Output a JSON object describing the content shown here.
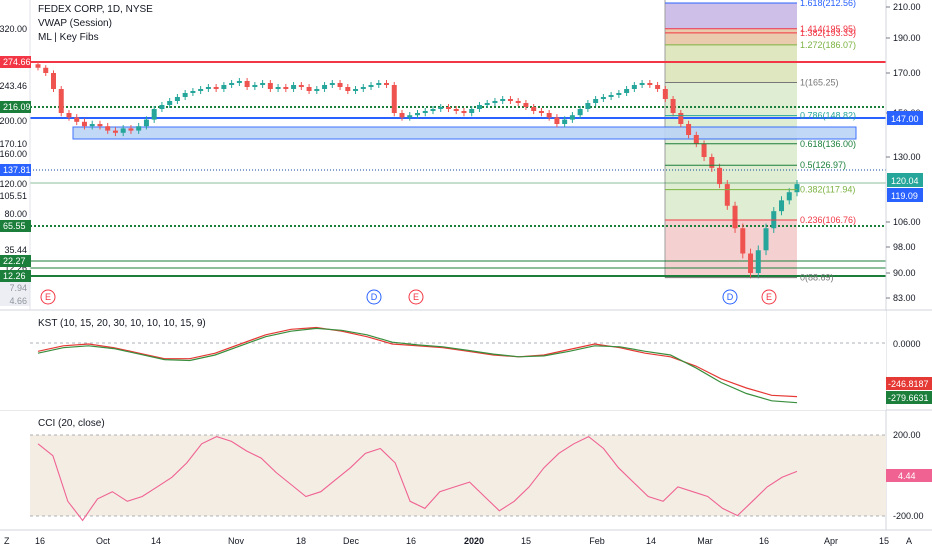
{
  "legend": {
    "symbol_title": "FEDEX CORP, 1D, NYSE",
    "vwap": "VWAP (Session)",
    "ml_fibs": "ML | Key Fibs"
  },
  "colors": {
    "up": "#26a69a",
    "down": "#ef5350",
    "dark_green": "#1b7f3b",
    "blue": "#2962ff",
    "red_line": "#f23645",
    "kst": "#e53935",
    "kst_signal": "#388e3c",
    "cci": "#f06292",
    "fib_box_green": "#d1e6bf",
    "fib_box_red": "#f2c4c4",
    "purple": "#9b7fc9"
  },
  "time_axis": {
    "labels": [
      "16",
      "Oct",
      "14",
      "Nov",
      "18",
      "Dec",
      "16",
      "2020",
      "15",
      "Feb",
      "14",
      "Mar",
      "16",
      "Apr",
      "15"
    ],
    "left_letter": "Z",
    "right_letter": "A"
  },
  "price_axis_right": {
    "ticks": [
      "210.00",
      "190.00",
      "170.00",
      "150.00",
      "130.00",
      "106.00",
      "98.00",
      "90.00",
      "83.00"
    ]
  },
  "price_axis_left": {
    "ticks": [
      "320.00",
      "274.66",
      "243.46",
      "216.09",
      "200.00",
      "170.10",
      "160.00",
      "137.81",
      "120.00",
      "105.51",
      "80.00",
      "65.55",
      "35.44",
      "22.27",
      "12.26",
      "7.94",
      "4.66"
    ]
  },
  "badges_left": [
    {
      "text": "274.66",
      "color": "#f23645"
    },
    {
      "text": "216.09",
      "color": "#1b7f3b"
    },
    {
      "text": "137.81",
      "color": "#2962ff"
    },
    {
      "text": "65.55",
      "color": "#1b7f3b"
    },
    {
      "text": "22.27",
      "color": "#1b7f3b"
    },
    {
      "text": "12.26",
      "color": "#1b7f3b"
    }
  ],
  "badges_right": [
    {
      "text": "147.00",
      "color": "#2962ff"
    },
    {
      "text": "120.04",
      "color": "#26a69a"
    },
    {
      "text": "119.09",
      "color": "#2962ff"
    }
  ],
  "fib_levels": [
    {
      "label": "1.618(212.56)",
      "color": "#2962ff"
    },
    {
      "label": "1.414(195.95)",
      "color": "#f23645"
    },
    {
      "label": "1.382(193.33)",
      "color": "#f23645"
    },
    {
      "label": "1.272(186.07)",
      "color": "#7cb342"
    },
    {
      "label": "1(165.25)",
      "color": "#777777"
    },
    {
      "label": "0.786(148.82)",
      "color": "#26a69a"
    },
    {
      "label": "0.618(136.00)",
      "color": "#1b7f3b"
    },
    {
      "label": "0.5(126.97)",
      "color": "#1b7f3b"
    },
    {
      "label": "0.382(117.94)",
      "color": "#7cb342"
    },
    {
      "label": "0.236(106.76)",
      "color": "#f23645"
    },
    {
      "label": "0(88.69)",
      "color": "#777777"
    }
  ],
  "events": [
    {
      "letter": "E",
      "kind": "earnings"
    },
    {
      "letter": "D",
      "kind": "dividend"
    },
    {
      "letter": "E",
      "kind": "earnings"
    },
    {
      "letter": "D",
      "kind": "dividend"
    },
    {
      "letter": "E",
      "kind": "earnings"
    }
  ],
  "kst": {
    "title": "KST (10, 15, 20, 30, 10, 10, 10, 15, 9)",
    "axis_tick": "0.0000",
    "last_kst": "-246.8187",
    "last_signal": "-279.6631"
  },
  "cci": {
    "title": "CCI (20, close)",
    "ticks": [
      "200.00",
      "-200.00"
    ],
    "last": "4.44"
  },
  "chart_data": [
    {
      "type": "candlestick",
      "title": "FEDEX CORP, 1D, NYSE",
      "series": [
        {
          "name": "FEDEX CORP",
          "close": [
            173,
            170,
            162,
            150,
            148,
            146,
            144,
            145,
            144,
            142,
            141,
            143,
            142,
            144,
            147,
            152,
            154,
            156,
            158,
            160,
            161,
            162,
            163,
            162,
            164,
            165,
            166,
            163,
            164,
            165,
            162,
            163,
            162,
            164,
            163,
            161,
            162,
            164,
            165,
            163,
            161,
            162,
            163,
            164,
            165,
            164,
            150,
            148,
            149,
            150,
            151,
            152,
            153,
            152,
            151,
            150,
            152,
            154,
            155,
            156,
            157,
            156,
            155,
            153,
            151,
            150,
            148,
            145,
            147,
            149,
            152,
            155,
            157,
            158,
            159,
            160,
            162,
            164,
            165,
            164,
            162,
            157,
            150,
            145,
            140,
            136,
            130,
            126,
            120,
            112,
            104,
            96,
            90,
            97,
            104,
            110,
            114,
            117,
            120
          ]
        }
      ],
      "ylim": [
        83,
        215
      ],
      "y_ticks": [
        210,
        190,
        170,
        150,
        130,
        106,
        98,
        90,
        83
      ],
      "x_ticks": [
        "16",
        "Oct",
        "14",
        "Nov",
        "18",
        "Dec",
        "16",
        "2020",
        "15",
        "Feb",
        "14",
        "Mar",
        "16",
        "Apr",
        "15"
      ],
      "horizontal_levels": [
        274.66,
        216.09,
        147.0,
        137.81,
        120.04,
        65.55,
        22.27,
        12.26
      ],
      "fibonacci": {
        "levels": [
          212.56,
          195.95,
          193.33,
          186.07,
          165.25,
          148.82,
          136.0,
          126.97,
          117.94,
          106.76,
          88.69
        ]
      }
    },
    {
      "type": "line",
      "title": "KST (10, 15, 20, 30, 10, 10, 10, 15, 9)",
      "series": [
        {
          "name": "KST",
          "values": [
            0,
            30,
            40,
            20,
            -10,
            -40,
            -40,
            -10,
            40,
            90,
            120,
            130,
            110,
            80,
            40,
            30,
            20,
            0,
            -20,
            -30,
            -20,
            10,
            40,
            20,
            -10,
            -30,
            -80,
            -150,
            -200,
            -240,
            -247
          ]
        },
        {
          "name": "Signal",
          "values": [
            -10,
            20,
            30,
            15,
            -15,
            -45,
            -50,
            -20,
            30,
            80,
            110,
            125,
            115,
            90,
            50,
            35,
            25,
            5,
            -15,
            -30,
            -25,
            0,
            30,
            25,
            0,
            -20,
            -90,
            -170,
            -230,
            -270,
            -280
          ]
        }
      ],
      "y_ticks": [
        0
      ],
      "ylim": [
        -320,
        220
      ]
    },
    {
      "type": "line",
      "title": "CCI (20, close)",
      "series": [
        {
          "name": "CCI",
          "values": [
            120,
            70,
            -120,
            -200,
            -110,
            -80,
            -120,
            -100,
            -60,
            -20,
            40,
            120,
            150,
            130,
            90,
            60,
            0,
            -50,
            -100,
            -80,
            -30,
            20,
            80,
            100,
            40,
            -120,
            -150,
            -80,
            -60,
            -40,
            -100,
            -160,
            -120,
            -60,
            20,
            80,
            120,
            150,
            100,
            20,
            -40,
            -100,
            -120,
            -60,
            -80,
            -100,
            -150,
            -180,
            -120,
            -60,
            -20,
            4.44
          ]
        }
      ],
      "y_ticks": [
        200,
        -200
      ],
      "ylim": [
        -240,
        240
      ]
    }
  ]
}
